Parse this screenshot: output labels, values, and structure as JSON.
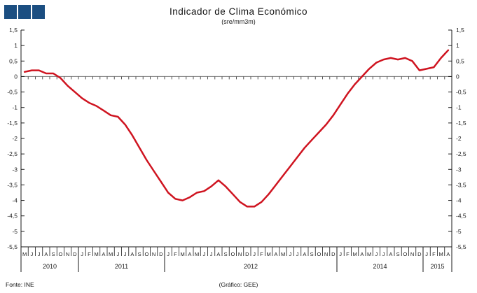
{
  "title": "Indicador de Clima Económico",
  "subtitle": "(sre/mm3m)",
  "logo": {
    "icon": "three-squares-logo",
    "color": "#1b4e81",
    "square_count": 3
  },
  "footer": {
    "source": "Fonte: INE",
    "credit": "(Gráfico:  GEE)"
  },
  "chart_data": {
    "type": "line",
    "title": "Indicador de Clima Económico",
    "subtitle": "(sre/mm3m)",
    "xlabel": "",
    "ylabel": "",
    "ylim": [
      -5.5,
      1.5
    ],
    "y_tick_step": 0.5,
    "y_tick_labels_top_to_bottom": [
      "1,5",
      "1",
      "0,5",
      "0",
      "-0,5",
      "-1",
      "-1,5",
      "-2",
      "-2,5",
      "-3",
      "-3,5",
      "-4",
      "-4,5",
      "-5",
      "-5,5"
    ],
    "y_axis_sides": [
      "left",
      "right"
    ],
    "grid": false,
    "legend_position": "none",
    "line_color": "#cf1420",
    "axis_color": "#1a1a1a",
    "zero_line_color": "#777777",
    "x_start": "2010-05",
    "x_end": "2015-04",
    "groups": [
      {
        "year": "2010",
        "months": [
          "M",
          "J",
          "J",
          "A",
          "S",
          "O",
          "N",
          "D"
        ]
      },
      {
        "year": "2011",
        "months": [
          "J",
          "F",
          "M",
          "A",
          "M",
          "J",
          "J",
          "A",
          "S",
          "O",
          "N",
          "D"
        ]
      },
      {
        "year": "2012",
        "months": [
          "J",
          "F",
          "M",
          "A",
          "M",
          "J",
          "J",
          "A",
          "S",
          "O",
          "N",
          "D",
          "J",
          "F",
          "M",
          "A",
          "M",
          "J",
          "J",
          "A",
          "S",
          "O",
          "N",
          "D"
        ]
      },
      {
        "year": "2014",
        "months": [
          "J",
          "F",
          "M",
          "A",
          "M",
          "J",
          "J",
          "A",
          "S",
          "O",
          "N",
          "D"
        ]
      },
      {
        "year": "2015",
        "months": [
          "J",
          "F",
          "M",
          "A"
        ]
      }
    ],
    "values": [
      0.15,
      0.2,
      0.2,
      0.1,
      0.1,
      -0.05,
      -0.3,
      -0.5,
      -0.7,
      -0.85,
      -0.95,
      -1.1,
      -1.25,
      -1.3,
      -1.55,
      -1.9,
      -2.3,
      -2.7,
      -3.05,
      -3.4,
      -3.75,
      -3.95,
      -4.0,
      -3.9,
      -3.75,
      -3.7,
      -3.55,
      -3.35,
      -3.55,
      -3.8,
      -4.05,
      -4.2,
      -4.2,
      -4.05,
      -3.8,
      -3.5,
      -3.2,
      -2.9,
      -2.6,
      -2.3,
      -2.05,
      -1.8,
      -1.55,
      -1.25,
      -0.9,
      -0.55,
      -0.25,
      0.0,
      0.25,
      0.45,
      0.55,
      0.6,
      0.55,
      0.6,
      0.5,
      0.2,
      0.25,
      0.3,
      0.6,
      0.85
    ]
  }
}
